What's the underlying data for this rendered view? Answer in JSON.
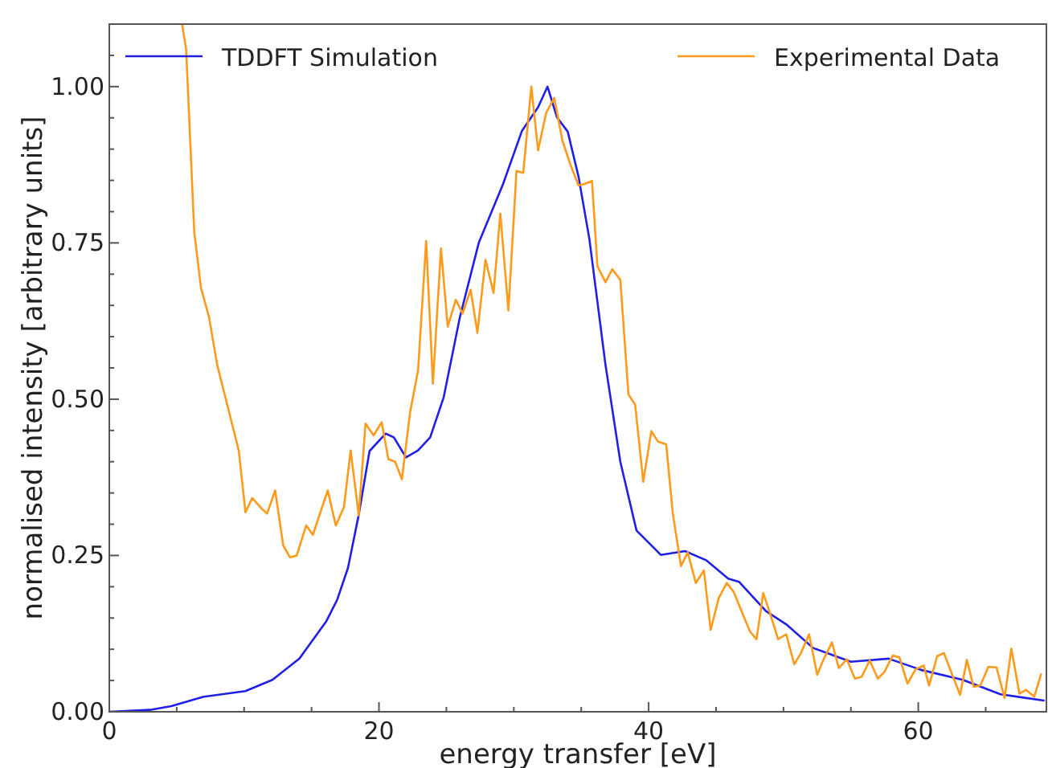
{
  "chart_data": {
    "type": "line",
    "xlabel": "energy transfer [eV]",
    "ylabel": "normalised intensity [arbitrary units]",
    "xlim": [
      0,
      69.5
    ],
    "ylim": [
      0,
      1.1
    ],
    "xticks": [
      0,
      {
        "value": 5,
        "label": null
      },
      {
        "value": 10,
        "label": null
      },
      {
        "value": 15,
        "label": null
      },
      20,
      {
        "value": 25,
        "label": null
      },
      {
        "value": 30,
        "label": null
      },
      {
        "value": 35,
        "label": null
      },
      40,
      {
        "value": 45,
        "label": null
      },
      {
        "value": 50,
        "label": null
      },
      {
        "value": 55,
        "label": null
      },
      60,
      {
        "value": 65,
        "label": null
      }
    ],
    "yticks": [
      {
        "value": 0,
        "label": "0.00"
      },
      {
        "value": 0.05,
        "label": null
      },
      {
        "value": 0.1,
        "label": null
      },
      {
        "value": 0.15,
        "label": null
      },
      {
        "value": 0.2,
        "label": null
      },
      {
        "value": 0.25,
        "label": "0.25"
      },
      {
        "value": 0.3,
        "label": null
      },
      {
        "value": 0.35,
        "label": null
      },
      {
        "value": 0.4,
        "label": null
      },
      {
        "value": 0.45,
        "label": null
      },
      {
        "value": 0.5,
        "label": "0.50"
      },
      {
        "value": 0.55,
        "label": null
      },
      {
        "value": 0.6,
        "label": null
      },
      {
        "value": 0.65,
        "label": null
      },
      {
        "value": 0.7,
        "label": null
      },
      {
        "value": 0.75,
        "label": "0.75"
      },
      {
        "value": 0.8,
        "label": null
      },
      {
        "value": 0.85,
        "label": null
      },
      {
        "value": 0.9,
        "label": null
      },
      {
        "value": 0.95,
        "label": null
      },
      {
        "value": 1,
        "label": "1.00"
      },
      {
        "value": 1.05,
        "label": null
      }
    ],
    "grid": false,
    "legend": "top",
    "marker": "none",
    "line_style": "solid",
    "series": [
      {
        "name": "TDDFT Simulation",
        "color": "#1f1fe8",
        "x": [
          0,
          3.0,
          4.6,
          7.0,
          10.1,
          12.1,
          14.1,
          16.1,
          16.9,
          17.7,
          18.5,
          19.3,
          20.5,
          21.1,
          22.0,
          22.9,
          23.8,
          24.8,
          26.0,
          27.4,
          29.2,
          30.6,
          31.8,
          32.5,
          33.2,
          34.0,
          34.8,
          35.6,
          36.8,
          37.9,
          39.1,
          40.9,
          42.7,
          44.3,
          45.9,
          46.7,
          48.7,
          50.2,
          52.2,
          55.0,
          57.8,
          60.2,
          63.3,
          66.1,
          69.3
        ],
        "values": [
          0,
          0.003,
          0.009,
          0.024,
          0.033,
          0.051,
          0.085,
          0.145,
          0.179,
          0.23,
          0.315,
          0.417,
          0.445,
          0.439,
          0.407,
          0.418,
          0.439,
          0.503,
          0.631,
          0.75,
          0.844,
          0.929,
          0.967,
          1.0,
          0.951,
          0.928,
          0.856,
          0.757,
          0.555,
          0.4,
          0.29,
          0.251,
          0.257,
          0.242,
          0.213,
          0.208,
          0.161,
          0.14,
          0.102,
          0.08,
          0.085,
          0.067,
          0.051,
          0.028,
          0.018
        ]
      },
      {
        "name": "Experimental Data",
        "color": "#ff9a1a",
        "x": [
          5.4,
          5.7,
          6.3,
          6.8,
          7.4,
          8.0,
          9.6,
          10.1,
          10.6,
          11.3,
          11.7,
          12.3,
          12.9,
          13.4,
          13.9,
          14.6,
          15.1,
          16.2,
          16.8,
          17.4,
          17.9,
          18.5,
          19.0,
          19.6,
          20.2,
          20.7,
          21.2,
          21.7,
          22.3,
          22.9,
          23.5,
          24.0,
          24.6,
          25.1,
          25.7,
          26.2,
          26.8,
          27.3,
          27.9,
          28.5,
          29.0,
          29.6,
          30.2,
          30.7,
          31.3,
          31.8,
          32.4,
          33.0,
          33.6,
          34.2,
          34.8,
          35.2,
          35.8,
          36.2,
          36.8,
          37.3,
          37.9,
          38.5,
          39.0,
          39.6,
          40.2,
          40.7,
          41.3,
          41.8,
          42.4,
          42.9,
          43.5,
          44.1,
          44.6,
          45.2,
          45.8,
          46.3,
          47.5,
          48.0,
          48.5,
          49.0,
          49.6,
          50.2,
          50.8,
          51.3,
          51.9,
          52.5,
          53.0,
          53.6,
          54.1,
          54.7,
          55.3,
          55.8,
          56.4,
          57.0,
          57.5,
          58.1,
          58.6,
          59.2,
          59.8,
          60.4,
          60.8,
          61.4,
          61.9,
          62.5,
          63.1,
          63.6,
          64.1,
          64.6,
          65.2,
          65.8,
          66.4,
          66.9,
          67.5,
          68.0,
          68.6,
          69.1
        ],
        "values": [
          1.1,
          1.059,
          0.768,
          0.678,
          0.631,
          0.555,
          0.418,
          0.319,
          0.342,
          0.325,
          0.317,
          0.354,
          0.266,
          0.247,
          0.25,
          0.298,
          0.283,
          0.354,
          0.298,
          0.327,
          0.418,
          0.314,
          0.461,
          0.442,
          0.463,
          0.404,
          0.4,
          0.372,
          0.478,
          0.546,
          0.753,
          0.525,
          0.741,
          0.616,
          0.659,
          0.637,
          0.675,
          0.606,
          0.723,
          0.67,
          0.797,
          0.642,
          0.865,
          0.862,
          1.0,
          0.898,
          0.958,
          0.982,
          0.914,
          0.875,
          0.842,
          0.844,
          0.849,
          0.713,
          0.687,
          0.708,
          0.691,
          0.508,
          0.491,
          0.368,
          0.449,
          0.432,
          0.428,
          0.316,
          0.233,
          0.255,
          0.206,
          0.226,
          0.131,
          0.182,
          0.206,
          0.192,
          0.129,
          0.116,
          0.19,
          0.158,
          0.116,
          0.124,
          0.076,
          0.094,
          0.124,
          0.059,
          0.085,
          0.111,
          0.07,
          0.084,
          0.053,
          0.056,
          0.082,
          0.053,
          0.064,
          0.09,
          0.087,
          0.045,
          0.068,
          0.074,
          0.042,
          0.089,
          0.094,
          0.06,
          0.027,
          0.083,
          0.04,
          0.042,
          0.072,
          0.071,
          0.022,
          0.101,
          0.029,
          0.035,
          0.024,
          0.06
        ]
      }
    ]
  }
}
